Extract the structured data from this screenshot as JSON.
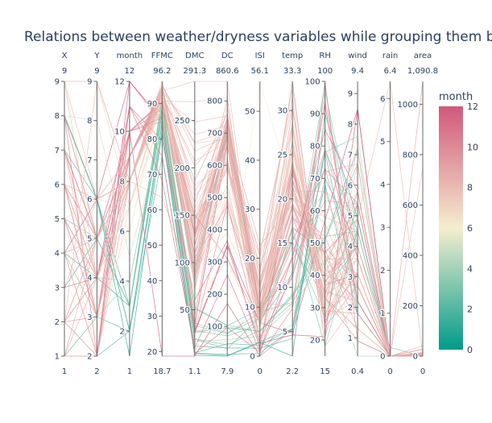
{
  "chart_data": {
    "type": "parallel-coordinates",
    "title": "Relations between weather/dryness variables while grouping them by month",
    "color_by": "month",
    "colorscale": [
      "#009b8a",
      "#f5edd0",
      "#d1587a"
    ],
    "colorbar": {
      "title": "month",
      "range": [
        0,
        12
      ],
      "ticks": [
        0,
        2,
        4,
        6,
        8,
        10,
        12
      ]
    },
    "dimensions": [
      {
        "label": "X",
        "range": [
          1,
          9
        ],
        "min_label": "1",
        "max_label": "9",
        "ticks": [
          1,
          2,
          3,
          4,
          5,
          6,
          7,
          8,
          9
        ]
      },
      {
        "label": "Y",
        "range": [
          2,
          9
        ],
        "min_label": "2",
        "max_label": "9",
        "ticks": [
          2,
          3,
          4,
          5,
          6,
          7,
          8,
          9
        ]
      },
      {
        "label": "month",
        "range": [
          1,
          12
        ],
        "min_label": "1",
        "max_label": "12",
        "ticks": [
          2,
          4,
          6,
          8,
          10,
          12
        ]
      },
      {
        "label": "FFMC",
        "range": [
          18.7,
          96.2
        ],
        "min_label": "18.7",
        "max_label": "96.2",
        "ticks": [
          20,
          30,
          40,
          50,
          60,
          70,
          80,
          90
        ]
      },
      {
        "label": "DMC",
        "range": [
          1.1,
          291.3
        ],
        "min_label": "1.1",
        "max_label": "291.3",
        "ticks": [
          50,
          100,
          150,
          200,
          250
        ]
      },
      {
        "label": "DC",
        "range": [
          7.9,
          860.6
        ],
        "min_label": "7.9",
        "max_label": "860.6",
        "ticks": [
          100,
          200,
          300,
          400,
          500,
          600,
          700,
          800
        ]
      },
      {
        "label": "ISI",
        "range": [
          0,
          56.1
        ],
        "min_label": "0",
        "max_label": "56.1",
        "ticks": [
          0,
          10,
          20,
          30,
          40,
          50
        ]
      },
      {
        "label": "temp",
        "range": [
          2.2,
          33.3
        ],
        "min_label": "2.2",
        "max_label": "33.3",
        "ticks": [
          5,
          10,
          15,
          20,
          25,
          30
        ]
      },
      {
        "label": "RH",
        "range": [
          15,
          100
        ],
        "min_label": "15",
        "max_label": "100",
        "ticks": [
          20,
          30,
          40,
          50,
          60,
          70,
          80,
          90,
          100
        ]
      },
      {
        "label": "wind",
        "range": [
          0.4,
          9.4
        ],
        "min_label": "0.4",
        "max_label": "9.4",
        "ticks": [
          1,
          2,
          3,
          4,
          5,
          6,
          7,
          8,
          9
        ]
      },
      {
        "label": "rain",
        "range": [
          0,
          6.4
        ],
        "min_label": "0",
        "max_label": "6.4",
        "ticks": [
          0,
          1,
          2,
          3,
          4,
          5,
          6
        ]
      },
      {
        "label": "area",
        "range": [
          0,
          1090.84
        ],
        "min_label": "0",
        "max_label": "1,090.8",
        "ticks": [
          0,
          200,
          400,
          600,
          800,
          1000
        ]
      }
    ],
    "records": [
      [
        7,
        5,
        3,
        86.2,
        26.2,
        94.3,
        5.1,
        8.2,
        51,
        6.7,
        0,
        0
      ],
      [
        7,
        4,
        10,
        90.6,
        35.4,
        669.1,
        6.7,
        18,
        33,
        0.9,
        0,
        0
      ],
      [
        7,
        4,
        10,
        90.6,
        43.7,
        686.9,
        6.7,
        14.6,
        33,
        1.3,
        0,
        0
      ],
      [
        8,
        6,
        3,
        91.7,
        33.3,
        77.5,
        9,
        8.3,
        97,
        4,
        0.2,
        0
      ],
      [
        8,
        6,
        3,
        89.3,
        51.3,
        102.2,
        9.6,
        11.4,
        99,
        1.8,
        0,
        0
      ],
      [
        8,
        6,
        8,
        92.3,
        85.3,
        488,
        14.7,
        22.2,
        29,
        5.4,
        0,
        0
      ],
      [
        8,
        6,
        8,
        92.3,
        88.9,
        495.6,
        8.5,
        24.1,
        27,
        3.1,
        0,
        0
      ],
      [
        8,
        6,
        8,
        91.5,
        145.4,
        608.2,
        10.7,
        8,
        86,
        2.2,
        0,
        0
      ],
      [
        8,
        6,
        9,
        91,
        129.5,
        692.6,
        7,
        13.1,
        63,
        5.4,
        0,
        0
      ],
      [
        7,
        5,
        9,
        92.5,
        88,
        698.6,
        7.1,
        22.8,
        40,
        4,
        0,
        0
      ],
      [
        7,
        5,
        9,
        92.5,
        88,
        698.6,
        7.1,
        17.8,
        51,
        7.2,
        0,
        0
      ],
      [
        7,
        5,
        9,
        92.8,
        73.2,
        713,
        22.6,
        19.3,
        38,
        4,
        0,
        0
      ],
      [
        6,
        5,
        8,
        63.5,
        70.8,
        665.3,
        0.8,
        17,
        72,
        6.7,
        0,
        0
      ],
      [
        6,
        5,
        9,
        90.9,
        126.5,
        686.5,
        7,
        21.3,
        42,
        2.2,
        0,
        0
      ],
      [
        6,
        5,
        9,
        92.9,
        133.3,
        699.6,
        9.2,
        26.4,
        21,
        4.5,
        0,
        0
      ],
      [
        6,
        5,
        9,
        93.3,
        141.2,
        713.9,
        13.9,
        22.9,
        44,
        5.4,
        0,
        0
      ],
      [
        5,
        5,
        3,
        91.7,
        35.8,
        80.8,
        7.8,
        15.1,
        27,
        5.4,
        0,
        0
      ],
      [
        8,
        5,
        10,
        84.9,
        32.8,
        664.2,
        3,
        16.7,
        47,
        4.9,
        0,
        0
      ],
      [
        6,
        4,
        3,
        89.2,
        27.9,
        70.8,
        6.3,
        15.9,
        35,
        4,
        0,
        0
      ],
      [
        6,
        4,
        4,
        86.3,
        27.4,
        97.1,
        5.1,
        9.3,
        44,
        4.5,
        0,
        0
      ],
      [
        6,
        4,
        9,
        91,
        129.5,
        692.6,
        7,
        18.3,
        40,
        2.7,
        0,
        0
      ],
      [
        5,
        4,
        9,
        91.8,
        78.5,
        724.3,
        9.2,
        19.1,
        38,
        2.7,
        0,
        0
      ],
      [
        7,
        4,
        6,
        94.3,
        96.3,
        200,
        56.1,
        21,
        44,
        4.5,
        0,
        0
      ],
      [
        7,
        4,
        8,
        90.2,
        110.9,
        537.4,
        6.2,
        19.5,
        43,
        5.8,
        0,
        0
      ],
      [
        7,
        4,
        8,
        93.5,
        139.4,
        594.2,
        20.3,
        23.7,
        32,
        5.8,
        0,
        0
      ],
      [
        7,
        4,
        8,
        91.4,
        142.4,
        601.4,
        10.6,
        16.3,
        60,
        5.4,
        0,
        0
      ],
      [
        7,
        4,
        9,
        92.4,
        117.9,
        668,
        12.2,
        19,
        34,
        5.8,
        0,
        0
      ],
      [
        7,
        4,
        9,
        90.9,
        126.5,
        686.5,
        7,
        19.4,
        48,
        1.3,
        0,
        0
      ],
      [
        6,
        3,
        9,
        93.4,
        145.4,
        721.4,
        8.1,
        30.2,
        24,
        2.7,
        0,
        0
      ],
      [
        6,
        3,
        9,
        93.7,
        80.9,
        685.2,
        17.9,
        23.7,
        25,
        4.5,
        0,
        0
      ],
      [
        6,
        3,
        9,
        94.3,
        85.1,
        692.3,
        15.9,
        20.1,
        47,
        4.9,
        0,
        0
      ],
      [
        8,
        6,
        2,
        84.8,
        11.7,
        33.3,
        1.6,
        4.2,
        79,
        4.5,
        0,
        0
      ],
      [
        4,
        4,
        3,
        88.2,
        19.5,
        42.4,
        5.2,
        8.9,
        51,
        7.2,
        0,
        0
      ],
      [
        2,
        2,
        2,
        75.1,
        4.4,
        13.3,
        0.6,
        5.3,
        70,
        4.0,
        0,
        0
      ],
      [
        1,
        2,
        12,
        84.4,
        27.2,
        353.5,
        6.8,
        4.8,
        57,
        8.5,
        0,
        8.12
      ],
      [
        9,
        9,
        7,
        85.8,
        48.3,
        313.4,
        3.9,
        18,
        42,
        2.7,
        0,
        0.36
      ],
      [
        2,
        2,
        9,
        91.2,
        94.3,
        744.4,
        8.4,
        16.8,
        47,
        4.9,
        0,
        12.64
      ],
      [
        6,
        5,
        9,
        92.3,
        96.2,
        739.4,
        8.6,
        20.8,
        38,
        4.5,
        0,
        1090.84
      ],
      [
        3,
        4,
        8,
        91.6,
        181.3,
        613,
        7.6,
        24.3,
        33,
        3.6,
        0,
        1.9
      ],
      [
        8,
        6,
        8,
        95.2,
        217.7,
        690,
        18,
        28.2,
        29,
        1.8,
        0,
        5.86
      ],
      [
        1,
        4,
        9,
        91.5,
        130.1,
        807.1,
        7.5,
        21.3,
        35,
        2.2,
        0,
        28.19
      ],
      [
        4,
        3,
        8,
        92.1,
        207,
        672.6,
        8.2,
        25.5,
        29,
        1.8,
        0,
        1.23
      ],
      [
        2,
        5,
        8,
        95,
        135.5,
        596.3,
        21.3,
        30.6,
        28,
        3.6,
        0,
        2.07
      ],
      [
        6,
        5,
        8,
        96.2,
        175.5,
        661.8,
        16.8,
        32.6,
        26,
        3.1,
        0,
        2.77
      ],
      [
        3,
        4,
        8,
        93.6,
        235.1,
        723.1,
        10.1,
        20.9,
        66,
        4.9,
        0,
        15.34
      ],
      [
        7,
        4,
        7,
        93.3,
        141.2,
        713.9,
        13.9,
        27.6,
        30,
        1.3,
        0,
        0
      ],
      [
        2,
        4,
        9,
        94.9,
        130.3,
        587.1,
        14.1,
        33.3,
        25,
        4,
        0,
        26.43
      ],
      [
        5,
        4,
        10,
        18.7,
        1.1,
        171.4,
        0,
        5.2,
        100,
        0.9,
        0,
        0
      ],
      [
        4,
        5,
        8,
        93.7,
        101.3,
        458.8,
        11.9,
        19.3,
        39,
        7.2,
        0,
        7.73
      ],
      [
        8,
        6,
        8,
        93.9,
        135.7,
        586.7,
        15.1,
        20.8,
        34,
        4.9,
        6.4,
        0
      ],
      [
        9,
        4,
        8,
        91.6,
        248.4,
        753.8,
        6.3,
        20.4,
        56,
        2.2,
        0,
        0
      ],
      [
        1,
        3,
        2,
        84.1,
        4.6,
        46.7,
        2.2,
        5.3,
        68,
        1.8,
        0,
        0
      ],
      [
        3,
        5,
        3,
        88.6,
        91.8,
        709.9,
        7.1,
        11.2,
        78,
        7.6,
        0,
        0
      ],
      [
        4,
        6,
        12,
        85.4,
        25.4,
        349.7,
        2.6,
        4.6,
        21,
        8.5,
        0,
        9.77
      ],
      [
        2,
        2,
        8,
        92.8,
        119,
        783.5,
        7.5,
        21.6,
        27,
        2.2,
        0,
        0
      ],
      [
        6,
        6,
        8,
        94.8,
        227,
        706.7,
        12,
        23.3,
        34,
        3.1,
        0,
        28.74
      ],
      [
        5,
        4,
        11,
        79.5,
        60.6,
        366.7,
        1.5,
        23.3,
        37,
        3.1,
        0,
        0
      ],
      [
        4,
        3,
        4,
        85.3,
        16.8,
        58.9,
        4.1,
        7.9,
        45,
        0.4,
        0,
        0
      ],
      [
        3,
        3,
        6,
        89.9,
        60.1,
        299.1,
        5.3,
        24.9,
        41,
        7.6,
        0,
        4.62
      ],
      [
        8,
        8,
        5,
        81.5,
        9.1,
        55.2,
        2.7,
        5.8,
        54,
        5.8,
        0,
        4.61
      ],
      [
        2,
        3,
        10,
        88.3,
        150.3,
        309.9,
        6.8,
        13.4,
        79,
        3.6,
        0,
        2.53
      ],
      [
        5,
        2,
        7,
        91.7,
        100.5,
        505,
        9.5,
        26.7,
        36,
        3.6,
        0,
        12.1
      ],
      [
        1,
        5,
        9,
        91.7,
        163.2,
        744.4,
        10.1,
        23.5,
        46,
        3.1,
        0,
        4.5
      ],
      [
        7,
        6,
        2,
        82.1,
        3.7,
        9.3,
        2.9,
        5.3,
        78,
        2.2,
        0,
        0
      ],
      [
        9,
        5,
        6,
        92.5,
        121.1,
        674.4,
        8.6,
        25.1,
        27,
        4,
        0,
        0
      ],
      [
        3,
        6,
        8,
        92.1,
        152.6,
        658.2,
        14.3,
        20.1,
        58,
        4.5,
        0,
        9.27
      ],
      [
        8,
        6,
        1,
        82,
        1.9,
        7.9,
        2.8,
        2.2,
        90,
        4.9,
        0,
        0
      ],
      [
        6,
        4,
        8,
        88.6,
        134,
        595,
        6.5,
        15.5,
        66,
        2.7,
        0,
        0
      ],
      [
        4,
        4,
        3,
        90.9,
        18.9,
        30.6,
        8,
        16.6,
        18,
        4.5,
        0,
        0
      ],
      [
        2,
        4,
        9,
        92.2,
        102.3,
        751.5,
        8.4,
        24.2,
        27,
        3.1,
        0,
        6.3
      ],
      [
        5,
        6,
        7,
        91.9,
        111.7,
        520.4,
        7.2,
        26.7,
        31,
        5.8,
        0,
        1.34
      ],
      [
        7,
        5,
        10,
        90.1,
        108.8,
        718.2,
        9.1,
        15.2,
        73,
        2.7,
        0,
        0
      ],
      [
        3,
        5,
        3,
        87.6,
        52.2,
        103.8,
        5,
        9.1,
        52,
        4.5,
        0,
        0
      ],
      [
        6,
        6,
        8,
        93.1,
        157.3,
        666.7,
        13.5,
        28.7,
        28,
        2.7,
        0,
        0
      ],
      [
        8,
        5,
        9,
        94.2,
        117.2,
        729.2,
        12.5,
        21.9,
        46,
        1.8,
        0,
        12.18
      ],
      [
        4,
        2,
        10,
        18.7,
        1.1,
        171.4,
        0,
        7.6,
        94,
        3.6,
        0,
        0
      ],
      [
        5,
        3,
        11,
        68.3,
        9.7,
        261,
        0.9,
        13.5,
        85,
        5.8,
        0,
        0
      ],
      [
        2,
        9,
        8,
        90.1,
        170.3,
        624.7,
        6.2,
        24.1,
        37,
        5.4,
        0,
        0
      ],
      [
        9,
        9,
        8,
        95.1,
        225.8,
        682.6,
        20.6,
        31.5,
        18,
        2.2,
        0,
        0
      ],
      [
        6,
        3,
        9,
        91.6,
        104.2,
        474.9,
        9,
        22.1,
        49,
        2.7,
        0,
        40.54
      ],
      [
        4,
        5,
        8,
        94.4,
        146,
        614.7,
        11.3,
        25.6,
        42,
        4,
        0,
        0
      ],
      [
        1,
        2,
        8,
        90.6,
        269.8,
        811.2,
        5.5,
        22.2,
        45,
        3.6,
        0,
        0
      ],
      [
        7,
        3,
        8,
        92.6,
        201.8,
        719.6,
        7.3,
        28.1,
        30,
        6.7,
        0,
        746.28
      ],
      [
        3,
        4,
        10,
        86,
        28.1,
        480.5,
        3.6,
        11.2,
        73,
        5.4,
        0,
        0
      ],
      [
        5,
        4,
        7,
        92.4,
        92.6,
        392.3,
        9.6,
        20.7,
        40,
        3.1,
        0,
        0
      ],
      [
        2,
        5,
        9,
        93,
        186.3,
        760.2,
        9.7,
        18.9,
        52,
        1.8,
        0,
        0
      ],
      [
        8,
        2,
        11,
        75.1,
        4.2,
        96.2,
        0.8,
        11.8,
        93,
        2.2,
        0,
        0
      ],
      [
        9,
        6,
        8,
        93.5,
        291.3,
        860.6,
        9.7,
        26.4,
        36,
        4.5,
        0,
        0
      ]
    ]
  }
}
